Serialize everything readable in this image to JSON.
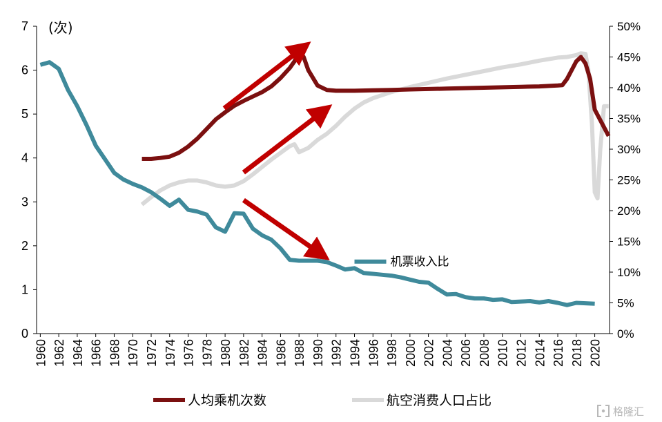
{
  "chart_data": {
    "type": "line",
    "left_axis": {
      "unit_label": "(次)",
      "ylim": [
        0,
        7
      ],
      "ticks": [
        "0",
        "1",
        "2",
        "3",
        "4",
        "5",
        "6",
        "7"
      ]
    },
    "right_axis": {
      "ylim": [
        0,
        50
      ],
      "ticks": [
        "0%",
        "5%",
        "10%",
        "15%",
        "20%",
        "25%",
        "30%",
        "35%",
        "40%",
        "45%",
        "50%"
      ]
    },
    "x_ticks": [
      "1960",
      "1962",
      "1964",
      "1966",
      "1968",
      "1970",
      "1972",
      "1974",
      "1976",
      "1978",
      "1980",
      "1982",
      "1984",
      "1986",
      "1988",
      "1990",
      "1992",
      "1994",
      "1996",
      "1998",
      "2000",
      "2002",
      "2004",
      "2006",
      "2008",
      "2010",
      "2012",
      "2014",
      "2016",
      "2018",
      "2020"
    ],
    "xlim": [
      1959.6,
      2021.6
    ],
    "series": [
      {
        "name": "机票收入比",
        "axis": "left",
        "color": "#3f8a9b",
        "x": [
          1960,
          1961,
          1962,
          1963,
          1964,
          1965,
          1966,
          1967,
          1968,
          1969,
          1970,
          1971,
          1972,
          1973,
          1974,
          1975,
          1976,
          1977,
          1978,
          1979,
          1980,
          1981,
          1982,
          1983,
          1984,
          1985,
          1986,
          1987,
          1988,
          1989,
          1990,
          1991,
          1992,
          1993,
          1994,
          1995,
          1996,
          1997,
          1998,
          1999,
          2000,
          2001,
          2002,
          2003,
          2004,
          2005,
          2006,
          2007,
          2008,
          2009,
          2010,
          2011,
          2012,
          2013,
          2014,
          2015,
          2016,
          2017,
          2018,
          2019,
          2020
        ],
        "values": [
          6.12,
          6.18,
          6.03,
          5.55,
          5.18,
          4.75,
          4.28,
          3.97,
          3.66,
          3.51,
          3.41,
          3.33,
          3.22,
          3.07,
          2.91,
          3.05,
          2.82,
          2.78,
          2.71,
          2.42,
          2.32,
          2.74,
          2.73,
          2.39,
          2.24,
          2.14,
          1.94,
          1.68,
          1.66,
          1.66,
          1.66,
          1.63,
          1.55,
          1.46,
          1.49,
          1.38,
          1.36,
          1.34,
          1.32,
          1.28,
          1.23,
          1.18,
          1.16,
          1.02,
          0.89,
          0.9,
          0.83,
          0.8,
          0.8,
          0.77,
          0.78,
          0.72,
          0.73,
          0.74,
          0.71,
          0.74,
          0.7,
          0.65,
          0.7,
          0.69,
          0.68
        ]
      },
      {
        "name": "人均乘机次数",
        "axis": "left",
        "color": "#7b1010",
        "x": [
          1971,
          1972,
          1973,
          1974,
          1975,
          1976,
          1977,
          1978,
          1979,
          1980,
          1981,
          1982,
          1983,
          1984,
          1985,
          1986,
          1987,
          1987.5,
          1988,
          1988.5,
          1989,
          1990,
          1991,
          1992,
          1994,
          1996,
          1998,
          2000,
          2002,
          2004,
          2006,
          2008,
          2010,
          2012,
          2014,
          2016,
          2016.5,
          2017,
          2017.5,
          2018,
          2018.5,
          2019,
          2019.5,
          2020,
          2020.5,
          2021,
          2021.5
        ],
        "values": [
          3.98,
          3.98,
          4.0,
          4.03,
          4.12,
          4.26,
          4.44,
          4.66,
          4.88,
          5.04,
          5.19,
          5.3,
          5.4,
          5.5,
          5.63,
          5.82,
          6.05,
          6.2,
          6.42,
          6.3,
          6.0,
          5.65,
          5.55,
          5.53,
          5.53,
          5.54,
          5.55,
          5.56,
          5.57,
          5.58,
          5.59,
          5.6,
          5.61,
          5.62,
          5.63,
          5.65,
          5.66,
          5.8,
          6.0,
          6.2,
          6.3,
          6.15,
          5.8,
          5.1,
          4.9,
          4.7,
          4.5
        ]
      },
      {
        "name": "航空消费人口占比",
        "axis": "right",
        "color": "#d9d9d9",
        "x": [
          1971,
          1972,
          1973,
          1974,
          1975,
          1976,
          1977,
          1978,
          1979,
          1980,
          1981,
          1982,
          1983,
          1984,
          1985,
          1986,
          1987,
          1987.5,
          1988,
          1989,
          1990,
          1991,
          1992,
          1993,
          1994,
          1995,
          1996,
          1997,
          1998,
          2000,
          2002,
          2004,
          2006,
          2008,
          2010,
          2012,
          2014,
          2016,
          2017,
          2018,
          2018.5,
          2019,
          2019.3,
          2019.7,
          2020,
          2020.3,
          2020.6,
          2021,
          2021.5
        ],
        "values": [
          21.0,
          22.2,
          23.3,
          24.1,
          24.6,
          24.9,
          24.9,
          24.6,
          24.1,
          23.9,
          24.1,
          24.8,
          25.9,
          27.1,
          28.3,
          29.4,
          30.5,
          30.8,
          29.5,
          30.2,
          31.5,
          32.5,
          33.8,
          35.3,
          36.6,
          37.6,
          38.3,
          38.8,
          39.3,
          40.1,
          40.8,
          41.5,
          42.1,
          42.7,
          43.3,
          43.8,
          44.4,
          44.9,
          45.0,
          45.3,
          45.6,
          45.5,
          43.0,
          34.0,
          23.0,
          22.0,
          30.0,
          37.0,
          37.0
        ]
      }
    ],
    "arrows": [
      {
        "from": [
          1979.9,
          5.13
        ],
        "to": [
          1988.3,
          6.49
        ]
      },
      {
        "from": [
          1982.0,
          3.67
        ],
        "to": [
          1990.6,
          5.06
        ]
      },
      {
        "from": [
          1982.0,
          3.04
        ],
        "to": [
          1990.3,
          1.82
        ]
      }
    ],
    "inline_label": {
      "text": "机票收入比",
      "series": "机票收入比",
      "at": [
        1994.0,
        1.64
      ]
    },
    "legend": {
      "placement": "bottom",
      "items": [
        {
          "label": "人均乘机次数",
          "color": "#7b1010"
        },
        {
          "label": "航空消费人口占比",
          "color": "#d9d9d9"
        }
      ]
    },
    "arrow_color": "#c00000",
    "grid": false
  },
  "watermark": {
    "text": "格隆汇",
    "icon": "bracket-logo-icon"
  }
}
